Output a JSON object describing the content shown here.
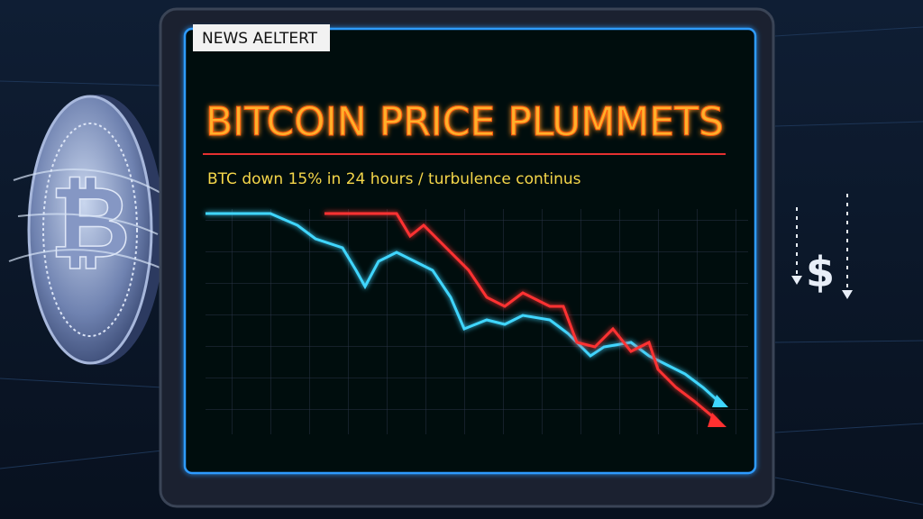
{
  "badge": "NEWS AELTERT",
  "headline": "BITCOIN PRICE PLUMMETS",
  "subheadline": "BTC down 15% in 24 hours / turbulence continus",
  "coin_symbol": "₿",
  "icon_symbol": "$"
}
